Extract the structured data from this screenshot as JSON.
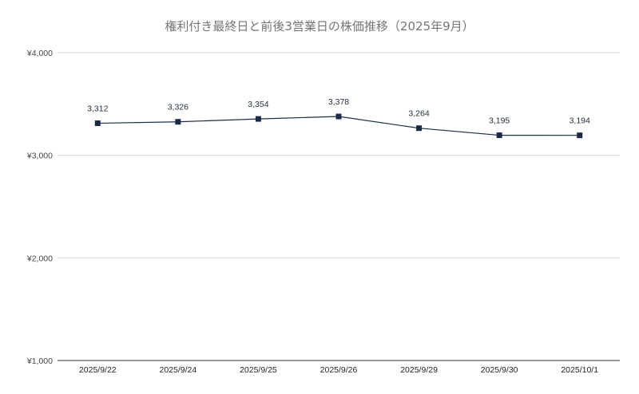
{
  "colors": {
    "series": "#1b2a47",
    "grid": "#d9d9d9",
    "axis": "#333333",
    "title": "#757575",
    "background": "#ffffff"
  },
  "chart_data": {
    "type": "line",
    "title": "権利付き最終日と前後3営業日の株価推移（2025年9月）",
    "xlabel": "",
    "ylabel": "",
    "categories": [
      "2025/9/22",
      "2025/9/24",
      "2025/9/25",
      "2025/9/26",
      "2025/9/29",
      "2025/9/30",
      "2025/10/1"
    ],
    "series": [
      {
        "values": [
          3312,
          3326,
          3354,
          3378,
          3264,
          3195,
          3194
        ]
      }
    ],
    "data_labels": [
      "3,312",
      "3,326",
      "3,354",
      "3,378",
      "3,264",
      "3,195",
      "3,194"
    ],
    "ylim": [
      1000,
      4000
    ],
    "yticks": [
      1000,
      2000,
      3000,
      4000
    ],
    "ytick_labels": [
      "¥1,000",
      "¥2,000",
      "¥3,000",
      "¥4,000"
    ],
    "grid": true,
    "legend": "none",
    "marker": "square"
  }
}
